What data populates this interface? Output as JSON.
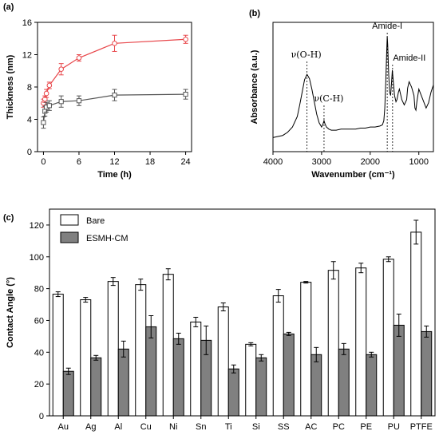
{
  "chart_data": [
    {
      "panel": "(a)",
      "type": "line",
      "xlabel": "Time (h)",
      "ylabel": "Thickness (nm)",
      "xlim": [
        -1,
        25
      ],
      "ylim": [
        0,
        16
      ],
      "xticks": [
        0,
        6,
        12,
        18,
        24
      ],
      "yticks": [
        0,
        4,
        8,
        12,
        16
      ],
      "colors": {
        "red": "#e8474b",
        "gray": "#555555"
      },
      "series": [
        {
          "color": "#e8474b",
          "marker": "circle",
          "x": [
            0,
            0.25,
            0.5,
            1,
            3,
            6,
            12,
            24
          ],
          "y": [
            6.0,
            6.5,
            7.2,
            8.2,
            10.2,
            11.6,
            13.4,
            13.9
          ],
          "err": [
            0.5,
            0.4,
            0.5,
            0.4,
            0.7,
            0.4,
            1.0,
            0.5
          ]
        },
        {
          "color": "#555555",
          "marker": "square",
          "x": [
            0,
            0.25,
            0.5,
            1,
            3,
            6,
            12,
            24
          ],
          "y": [
            3.6,
            5.0,
            5.5,
            5.7,
            6.2,
            6.3,
            7.0,
            7.1
          ],
          "err": [
            0.7,
            0.6,
            0.6,
            0.6,
            0.7,
            0.6,
            0.7,
            0.6
          ]
        }
      ]
    },
    {
      "panel": "(b)",
      "type": "line",
      "xlabel": "Wavenumber (cm⁻¹)",
      "ylabel": "Absorbance (a.u.)",
      "xlim": [
        4000,
        700
      ],
      "xticks": [
        4000,
        3000,
        2000,
        1000
      ],
      "annotations": [
        {
          "text": "ν(O-H)",
          "x": 3300
        },
        {
          "text": "ν(C-H)",
          "x": 2950
        },
        {
          "text": "Amide-I",
          "x": 1650
        },
        {
          "text": "Amide-II",
          "x": 1540
        }
      ],
      "spectrum": {
        "x": [
          4000,
          3900,
          3800,
          3700,
          3600,
          3500,
          3450,
          3400,
          3350,
          3300,
          3250,
          3200,
          3150,
          3100,
          3050,
          3000,
          2970,
          2950,
          2930,
          2900,
          2850,
          2800,
          2700,
          2600,
          2500,
          2400,
          2300,
          2200,
          2100,
          2000,
          1900,
          1800,
          1750,
          1720,
          1700,
          1680,
          1660,
          1650,
          1640,
          1620,
          1600,
          1580,
          1560,
          1545,
          1530,
          1500,
          1470,
          1450,
          1420,
          1400,
          1380,
          1350,
          1300,
          1250,
          1230,
          1200,
          1150,
          1100,
          1080,
          1060,
          1040,
          1000,
          950,
          900,
          850,
          800,
          750,
          700
        ],
        "y": [
          0.02,
          0.03,
          0.04,
          0.07,
          0.12,
          0.22,
          0.33,
          0.45,
          0.57,
          0.62,
          0.58,
          0.48,
          0.36,
          0.24,
          0.16,
          0.12,
          0.15,
          0.18,
          0.15,
          0.12,
          0.1,
          0.09,
          0.09,
          0.1,
          0.1,
          0.1,
          0.1,
          0.11,
          0.11,
          0.12,
          0.12,
          0.13,
          0.14,
          0.18,
          0.3,
          0.55,
          0.85,
          0.98,
          0.9,
          0.62,
          0.45,
          0.42,
          0.55,
          0.66,
          0.58,
          0.42,
          0.36,
          0.38,
          0.45,
          0.48,
          0.44,
          0.38,
          0.33,
          0.38,
          0.49,
          0.55,
          0.5,
          0.42,
          0.3,
          0.28,
          0.36,
          0.48,
          0.42,
          0.36,
          0.3,
          0.35,
          0.45,
          0.52
        ]
      }
    },
    {
      "panel": "(c)",
      "type": "bar",
      "ylabel": "Contact Angle (°)",
      "ylim": [
        0,
        130
      ],
      "yticks": [
        0,
        20,
        40,
        60,
        80,
        100,
        120
      ],
      "categories": [
        "Au",
        "Ag",
        "Al",
        "Cu",
        "Ni",
        "Sn",
        "Ti",
        "Si",
        "SS",
        "AC",
        "PC",
        "PE",
        "PU",
        "PTFE"
      ],
      "legend_position": "top-left",
      "series": [
        {
          "name": "Bare",
          "color": "#ffffff",
          "values": [
            76.5,
            73,
            84.5,
            82.5,
            89,
            59,
            68.5,
            45,
            75.5,
            84,
            91.5,
            93,
            98.5,
            115.5
          ],
          "err": [
            1.5,
            1.5,
            2.5,
            3.5,
            3.5,
            3,
            2.5,
            1,
            4,
            0.5,
            5.5,
            3,
            1.5,
            7.5
          ]
        },
        {
          "name": "ESMH-CM",
          "color": "#808080",
          "values": [
            28,
            36.5,
            42,
            56,
            48.5,
            47.5,
            29.5,
            36.5,
            51.5,
            38.5,
            42,
            38.5,
            57,
            53
          ],
          "err": [
            2,
            1.5,
            5,
            7,
            3.5,
            9,
            2.5,
            2,
            1,
            4.5,
            3.5,
            1.5,
            7,
            3.5
          ]
        }
      ]
    }
  ]
}
